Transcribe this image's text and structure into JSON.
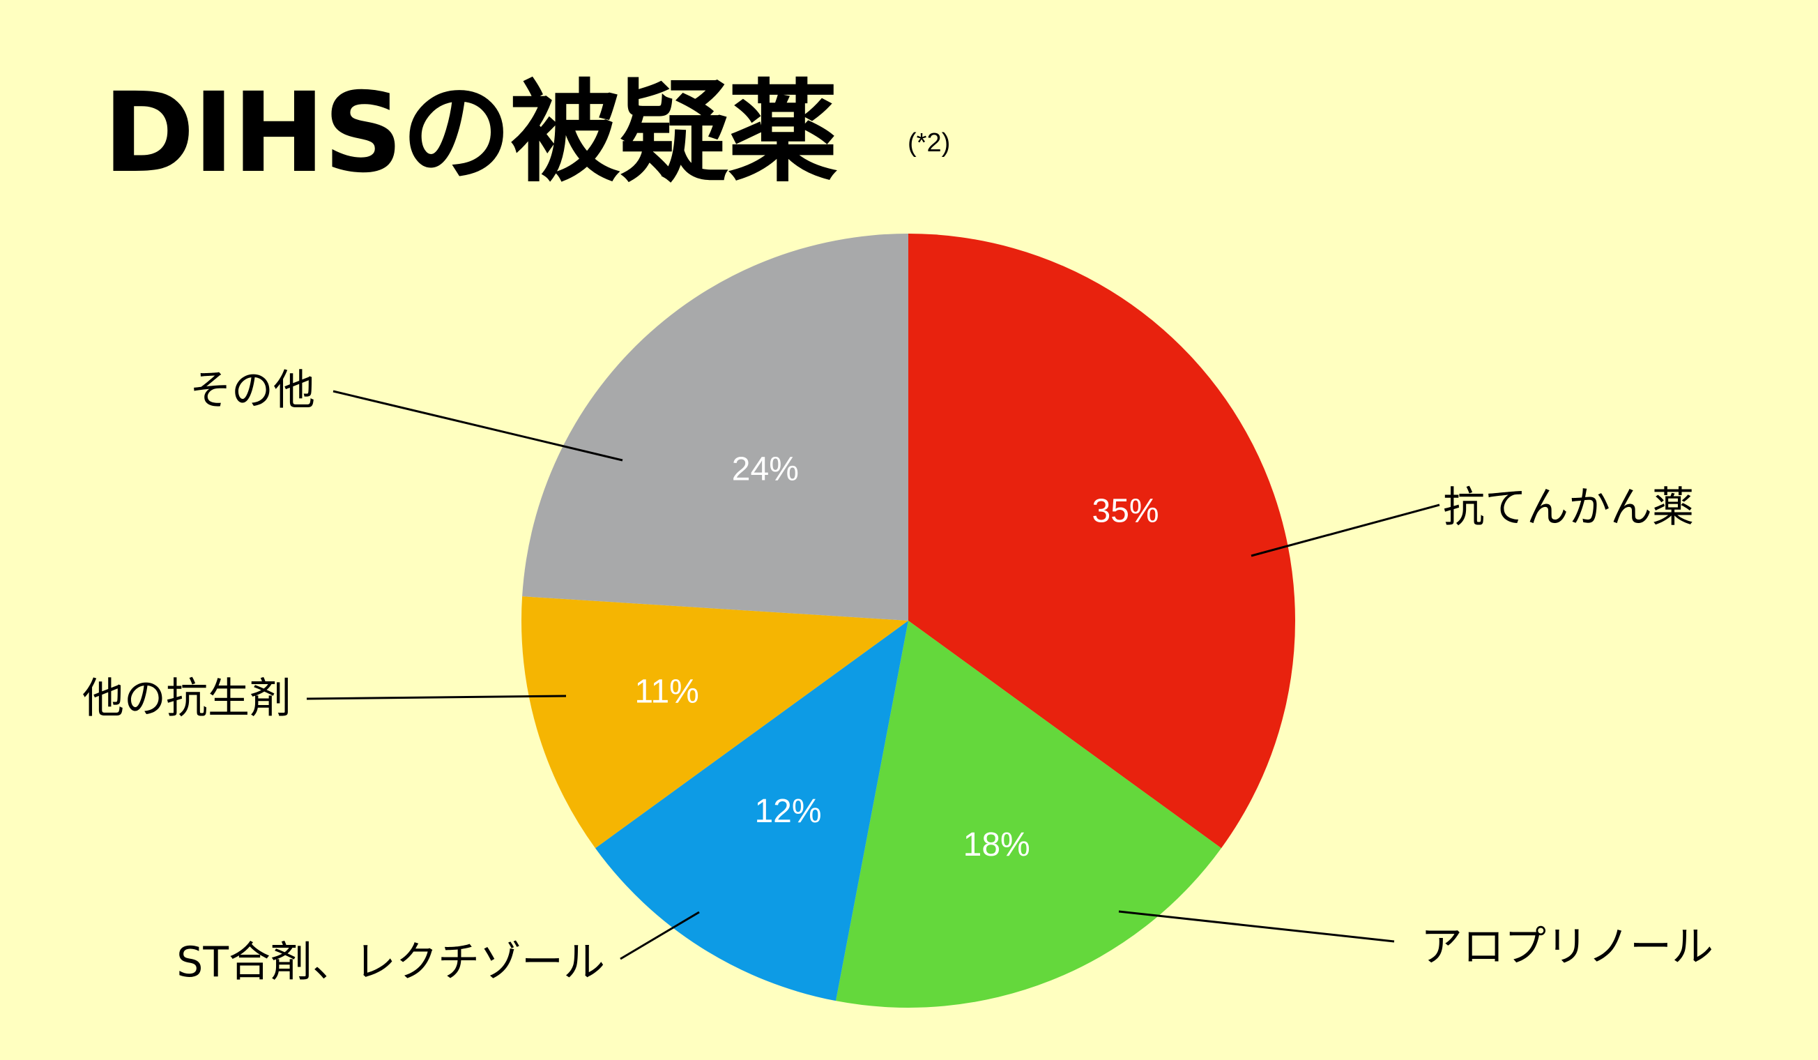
{
  "title": "DIHSの被疑薬",
  "note": "(*2)",
  "chart_data": {
    "type": "pie",
    "title": "DIHSの被疑薬",
    "unit": "%",
    "slices": [
      {
        "label": "抗てんかん薬",
        "value": 35,
        "value_label": "35%",
        "color": "#e8220e"
      },
      {
        "label": "アロプリノール",
        "value": 18,
        "value_label": "18%",
        "color": "#64d83c"
      },
      {
        "label": "ST合剤、レクチゾール",
        "value": 12,
        "value_label": "12%",
        "color": "#0d9be5"
      },
      {
        "label": "他の抗生剤",
        "value": 11,
        "value_label": "11%",
        "color": "#f5b502"
      },
      {
        "label": "その他",
        "value": 24,
        "value_label": "24%",
        "color": "#a8a9aa"
      }
    ],
    "start_angle": "12 o'clock",
    "direction": "clockwise",
    "background": "#ffffc0"
  }
}
